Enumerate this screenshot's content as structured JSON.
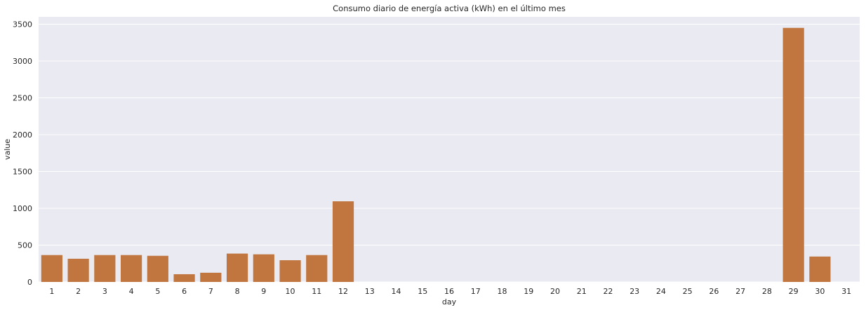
{
  "chart_data": {
    "type": "bar",
    "title": "Consumo diario de energía activa (kWh) en el último mes",
    "xlabel": "day",
    "ylabel": "value",
    "ylim": [
      0,
      3600
    ],
    "yticks": [
      0,
      500,
      1000,
      1500,
      2000,
      2500,
      3000,
      3500
    ],
    "grid": true,
    "bar_color": "#c0763e",
    "background_color": "#eaeaf2",
    "grid_color": "#ffffff",
    "categories": [
      "1",
      "2",
      "3",
      "4",
      "5",
      "6",
      "7",
      "8",
      "9",
      "10",
      "11",
      "12",
      "13",
      "14",
      "15",
      "16",
      "17",
      "18",
      "19",
      "20",
      "21",
      "22",
      "23",
      "24",
      "25",
      "26",
      "27",
      "28",
      "29",
      "30",
      "31"
    ],
    "values": [
      365,
      315,
      365,
      365,
      355,
      105,
      125,
      385,
      375,
      295,
      365,
      1095,
      0,
      0,
      0,
      0,
      0,
      0,
      0,
      0,
      0,
      0,
      0,
      0,
      0,
      0,
      0,
      0,
      3450,
      345,
      0
    ]
  }
}
